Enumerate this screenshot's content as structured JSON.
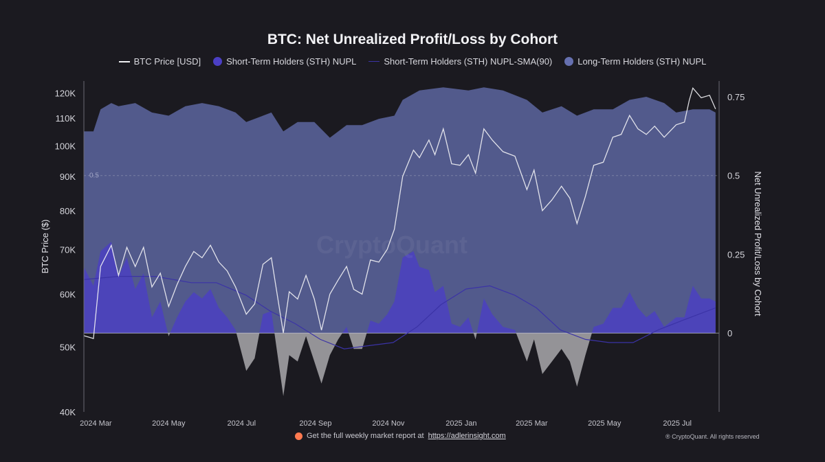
{
  "colors": {
    "background": "#1b1a20",
    "price_line": "#f2f2f5",
    "sth_nupl": "#4b3fc4",
    "sth_sma": "#3b33a6",
    "lth_nupl": "#6670b0",
    "negative_fill": "#a9a9ad",
    "accent_dot": "#ff7a50"
  },
  "legend_icons": {
    "price": "line",
    "sth": "dot",
    "sma": "thin-line",
    "lth": "dot"
  },
  "footer": {
    "report_prefix": "Get the full weekly market report at ",
    "report_link": "https://adlerinsight.com",
    "copyright": "® CryptoQuant. All rights reserved"
  },
  "watermark": "CryptoQuant",
  "chart_data": {
    "type": "area",
    "title": "BTC: Net Unrealized Profit/Loss by Cohort",
    "xlabel": "",
    "ylabel_left": "BTC Price ($)",
    "ylabel_right": "Net Unrealized Profit/Loss by Cohort",
    "y_left_scale": "log",
    "y_left_range": [
      40000,
      125000
    ],
    "y_left_ticks": [
      "120K",
      "110K",
      "100K",
      "90K",
      "80K",
      "70K",
      "60K",
      "50K",
      "40K"
    ],
    "y_left_tick_values": [
      120000,
      110000,
      100000,
      90000,
      80000,
      70000,
      60000,
      50000,
      40000
    ],
    "y_right_range": [
      -0.25,
      0.8
    ],
    "y_right_ticks": [
      "0.75",
      "0.5",
      "0.25",
      "0"
    ],
    "y_right_tick_values": [
      0.75,
      0.5,
      0.25,
      0
    ],
    "reference_line": {
      "value": 0.5,
      "label": "0.5"
    },
    "x_ticks": [
      "2024 Mar",
      "2024 May",
      "2024 Jul",
      "2024 Sep",
      "2024 Nov",
      "2025 Jan",
      "2025 Mar",
      "2025 May",
      "2025 Jul"
    ],
    "x_tick_values": [
      "2024-03-01",
      "2024-05-01",
      "2024-07-01",
      "2024-09-01",
      "2024-11-01",
      "2025-01-01",
      "2025-03-01",
      "2025-05-01",
      "2025-07-01"
    ],
    "x_range": [
      "2024-02-20",
      "2025-08-05"
    ],
    "grid": false,
    "legend_placement": "top-center",
    "series": [
      {
        "name": "BTC Price [USD]",
        "kind": "line",
        "axis": "left",
        "points": [
          [
            "2024-02-20",
            52000
          ],
          [
            "2024-02-28",
            51500
          ],
          [
            "2024-03-05",
            66000
          ],
          [
            "2024-03-14",
            71000
          ],
          [
            "2024-03-20",
            64000
          ],
          [
            "2024-03-27",
            70500
          ],
          [
            "2024-04-03",
            66000
          ],
          [
            "2024-04-10",
            70500
          ],
          [
            "2024-04-17",
            61500
          ],
          [
            "2024-04-24",
            64500
          ],
          [
            "2024-05-01",
            57500
          ],
          [
            "2024-05-08",
            62000
          ],
          [
            "2024-05-15",
            66000
          ],
          [
            "2024-05-22",
            69500
          ],
          [
            "2024-05-29",
            68000
          ],
          [
            "2024-06-05",
            71000
          ],
          [
            "2024-06-12",
            67000
          ],
          [
            "2024-06-19",
            65000
          ],
          [
            "2024-06-26",
            61500
          ],
          [
            "2024-07-05",
            56000
          ],
          [
            "2024-07-12",
            58000
          ],
          [
            "2024-07-19",
            66500
          ],
          [
            "2024-07-26",
            68000
          ],
          [
            "2024-08-05",
            52500
          ],
          [
            "2024-08-10",
            60500
          ],
          [
            "2024-08-17",
            59000
          ],
          [
            "2024-08-24",
            64000
          ],
          [
            "2024-08-31",
            59000
          ],
          [
            "2024-09-06",
            53000
          ],
          [
            "2024-09-13",
            60000
          ],
          [
            "2024-09-20",
            63000
          ],
          [
            "2024-09-27",
            66000
          ],
          [
            "2024-10-03",
            61000
          ],
          [
            "2024-10-10",
            60000
          ],
          [
            "2024-10-17",
            67500
          ],
          [
            "2024-10-24",
            67000
          ],
          [
            "2024-10-31",
            70000
          ],
          [
            "2024-11-06",
            75000
          ],
          [
            "2024-11-13",
            90000
          ],
          [
            "2024-11-22",
            98500
          ],
          [
            "2024-11-27",
            96000
          ],
          [
            "2024-12-05",
            102000
          ],
          [
            "2024-12-10",
            97000
          ],
          [
            "2024-12-17",
            106000
          ],
          [
            "2024-12-24",
            94000
          ],
          [
            "2024-12-31",
            93500
          ],
          [
            "2025-01-07",
            97000
          ],
          [
            "2025-01-13",
            91000
          ],
          [
            "2025-01-20",
            106000
          ],
          [
            "2025-01-27",
            102000
          ],
          [
            "2025-02-05",
            98000
          ],
          [
            "2025-02-15",
            96500
          ],
          [
            "2025-02-25",
            86000
          ],
          [
            "2025-03-03",
            92000
          ],
          [
            "2025-03-10",
            80000
          ],
          [
            "2025-03-18",
            83000
          ],
          [
            "2025-03-26",
            87000
          ],
          [
            "2025-04-02",
            83500
          ],
          [
            "2025-04-08",
            76500
          ],
          [
            "2025-04-15",
            84000
          ],
          [
            "2025-04-22",
            93500
          ],
          [
            "2025-04-30",
            94500
          ],
          [
            "2025-05-08",
            103000
          ],
          [
            "2025-05-15",
            104000
          ],
          [
            "2025-05-22",
            111000
          ],
          [
            "2025-05-29",
            106000
          ],
          [
            "2025-06-05",
            104000
          ],
          [
            "2025-06-12",
            107000
          ],
          [
            "2025-06-20",
            103000
          ],
          [
            "2025-06-30",
            107500
          ],
          [
            "2025-07-07",
            108500
          ],
          [
            "2025-07-11",
            117000
          ],
          [
            "2025-07-14",
            122000
          ],
          [
            "2025-07-21",
            118000
          ],
          [
            "2025-07-28",
            119000
          ],
          [
            "2025-08-02",
            113500
          ]
        ]
      },
      {
        "name": "Short-Term Holders (STH) NUPL",
        "kind": "area",
        "axis": "right",
        "points": [
          [
            "2024-02-20",
            0.21
          ],
          [
            "2024-02-28",
            0.15
          ],
          [
            "2024-03-05",
            0.26
          ],
          [
            "2024-03-14",
            0.29
          ],
          [
            "2024-03-20",
            0.18
          ],
          [
            "2024-03-27",
            0.24
          ],
          [
            "2024-04-03",
            0.14
          ],
          [
            "2024-04-10",
            0.19
          ],
          [
            "2024-04-17",
            0.05
          ],
          [
            "2024-04-24",
            0.1
          ],
          [
            "2024-05-01",
            -0.01
          ],
          [
            "2024-05-08",
            0.05
          ],
          [
            "2024-05-15",
            0.1
          ],
          [
            "2024-05-22",
            0.13
          ],
          [
            "2024-05-29",
            0.11
          ],
          [
            "2024-06-05",
            0.14
          ],
          [
            "2024-06-12",
            0.08
          ],
          [
            "2024-06-19",
            0.05
          ],
          [
            "2024-06-26",
            0.01
          ],
          [
            "2024-07-05",
            -0.12
          ],
          [
            "2024-07-12",
            -0.08
          ],
          [
            "2024-07-19",
            0.06
          ],
          [
            "2024-07-26",
            0.07
          ],
          [
            "2024-08-05",
            -0.2
          ],
          [
            "2024-08-10",
            -0.07
          ],
          [
            "2024-08-17",
            -0.09
          ],
          [
            "2024-08-24",
            -0.01
          ],
          [
            "2024-08-31",
            -0.09
          ],
          [
            "2024-09-06",
            -0.16
          ],
          [
            "2024-09-13",
            -0.07
          ],
          [
            "2024-09-20",
            -0.02
          ],
          [
            "2024-09-27",
            0.02
          ],
          [
            "2024-10-03",
            -0.05
          ],
          [
            "2024-10-10",
            -0.05
          ],
          [
            "2024-10-17",
            0.04
          ],
          [
            "2024-10-24",
            0.03
          ],
          [
            "2024-10-31",
            0.06
          ],
          [
            "2024-11-06",
            0.1
          ],
          [
            "2024-11-13",
            0.24
          ],
          [
            "2024-11-22",
            0.26
          ],
          [
            "2024-11-27",
            0.21
          ],
          [
            "2024-12-05",
            0.2
          ],
          [
            "2024-12-10",
            0.13
          ],
          [
            "2024-12-17",
            0.15
          ],
          [
            "2024-12-24",
            0.03
          ],
          [
            "2024-12-31",
            0.02
          ],
          [
            "2025-01-07",
            0.05
          ],
          [
            "2025-01-13",
            -0.02
          ],
          [
            "2025-01-20",
            0.11
          ],
          [
            "2025-01-27",
            0.06
          ],
          [
            "2025-02-05",
            0.02
          ],
          [
            "2025-02-15",
            0.01
          ],
          [
            "2025-02-25",
            -0.09
          ],
          [
            "2025-03-03",
            -0.02
          ],
          [
            "2025-03-10",
            -0.13
          ],
          [
            "2025-03-18",
            -0.09
          ],
          [
            "2025-03-26",
            -0.05
          ],
          [
            "2025-04-02",
            -0.09
          ],
          [
            "2025-04-08",
            -0.17
          ],
          [
            "2025-04-15",
            -0.07
          ],
          [
            "2025-04-22",
            0.02
          ],
          [
            "2025-04-30",
            0.03
          ],
          [
            "2025-05-08",
            0.08
          ],
          [
            "2025-05-15",
            0.08
          ],
          [
            "2025-05-22",
            0.13
          ],
          [
            "2025-05-29",
            0.08
          ],
          [
            "2025-06-05",
            0.05
          ],
          [
            "2025-06-12",
            0.07
          ],
          [
            "2025-06-20",
            0.02
          ],
          [
            "2025-06-30",
            0.05
          ],
          [
            "2025-07-07",
            0.05
          ],
          [
            "2025-07-11",
            0.11
          ],
          [
            "2025-07-14",
            0.15
          ],
          [
            "2025-07-21",
            0.11
          ],
          [
            "2025-07-28",
            0.11
          ],
          [
            "2025-08-02",
            0.1
          ]
        ]
      },
      {
        "name": "Short-Term Holders (STH) NUPL-SMA(90)",
        "kind": "line",
        "axis": "right",
        "points": [
          [
            "2024-02-20",
            0.17
          ],
          [
            "2024-03-20",
            0.18
          ],
          [
            "2024-04-20",
            0.18
          ],
          [
            "2024-05-20",
            0.16
          ],
          [
            "2024-06-10",
            0.16
          ],
          [
            "2024-07-05",
            0.12
          ],
          [
            "2024-07-25",
            0.07
          ],
          [
            "2024-08-15",
            0.03
          ],
          [
            "2024-09-05",
            -0.02
          ],
          [
            "2024-09-25",
            -0.05
          ],
          [
            "2024-10-15",
            -0.04
          ],
          [
            "2024-11-05",
            -0.03
          ],
          [
            "2024-11-25",
            0.02
          ],
          [
            "2024-12-15",
            0.09
          ],
          [
            "2025-01-05",
            0.14
          ],
          [
            "2025-01-25",
            0.15
          ],
          [
            "2025-02-15",
            0.12
          ],
          [
            "2025-03-05",
            0.08
          ],
          [
            "2025-03-25",
            0.01
          ],
          [
            "2025-04-15",
            -0.02
          ],
          [
            "2025-05-05",
            -0.03
          ],
          [
            "2025-05-25",
            -0.03
          ],
          [
            "2025-06-15",
            0.01
          ],
          [
            "2025-07-05",
            0.04
          ],
          [
            "2025-08-02",
            0.08
          ]
        ]
      },
      {
        "name": "Long-Term Holders (STH) NUPL",
        "kind": "area",
        "axis": "right",
        "points": [
          [
            "2024-02-20",
            0.64
          ],
          [
            "2024-02-28",
            0.64
          ],
          [
            "2024-03-05",
            0.71
          ],
          [
            "2024-03-14",
            0.73
          ],
          [
            "2024-03-20",
            0.72
          ],
          [
            "2024-04-03",
            0.73
          ],
          [
            "2024-04-17",
            0.7
          ],
          [
            "2024-05-01",
            0.69
          ],
          [
            "2024-05-15",
            0.72
          ],
          [
            "2024-05-29",
            0.73
          ],
          [
            "2024-06-12",
            0.72
          ],
          [
            "2024-06-26",
            0.7
          ],
          [
            "2024-07-05",
            0.67
          ],
          [
            "2024-07-19",
            0.69
          ],
          [
            "2024-07-26",
            0.7
          ],
          [
            "2024-08-05",
            0.64
          ],
          [
            "2024-08-17",
            0.67
          ],
          [
            "2024-08-31",
            0.67
          ],
          [
            "2024-09-13",
            0.62
          ],
          [
            "2024-09-27",
            0.66
          ],
          [
            "2024-10-10",
            0.66
          ],
          [
            "2024-10-24",
            0.68
          ],
          [
            "2024-11-06",
            0.69
          ],
          [
            "2024-11-13",
            0.74
          ],
          [
            "2024-11-27",
            0.77
          ],
          [
            "2024-12-17",
            0.78
          ],
          [
            "2025-01-07",
            0.77
          ],
          [
            "2025-01-20",
            0.78
          ],
          [
            "2025-02-05",
            0.77
          ],
          [
            "2025-02-25",
            0.74
          ],
          [
            "2025-03-10",
            0.7
          ],
          [
            "2025-03-26",
            0.72
          ],
          [
            "2025-04-08",
            0.69
          ],
          [
            "2025-04-22",
            0.71
          ],
          [
            "2025-05-08",
            0.71
          ],
          [
            "2025-05-22",
            0.74
          ],
          [
            "2025-06-05",
            0.75
          ],
          [
            "2025-06-20",
            0.73
          ],
          [
            "2025-06-30",
            0.7
          ],
          [
            "2025-07-14",
            0.71
          ],
          [
            "2025-07-28",
            0.71
          ],
          [
            "2025-08-02",
            0.7
          ]
        ]
      }
    ]
  }
}
